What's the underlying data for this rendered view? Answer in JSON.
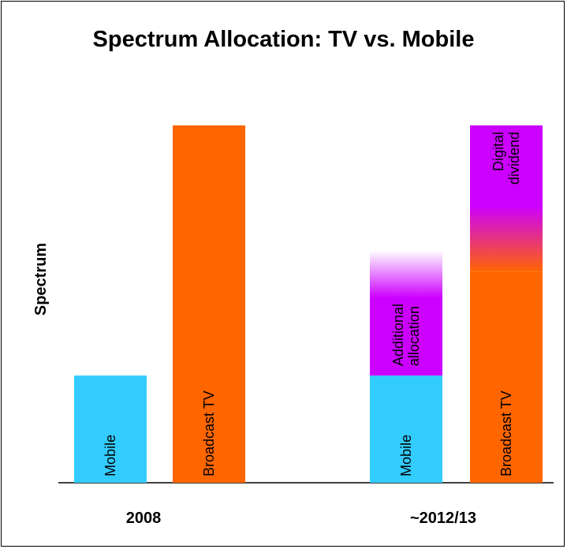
{
  "chart_data": {
    "type": "bar",
    "title": "Spectrum Allocation: TV vs. Mobile",
    "ylabel": "Spectrum",
    "xlabel": "",
    "ylim": [
      0,
      100
    ],
    "categories": [
      "2008",
      "~2012/13"
    ],
    "bars": [
      {
        "category": "2008",
        "label": "Mobile",
        "base": 0,
        "value": 30,
        "color": "#33ccff"
      },
      {
        "category": "2008",
        "label": "Broadcast TV",
        "base": 0,
        "value": 100,
        "color": "#ff6600"
      },
      {
        "category": "~2012/13",
        "label": "Mobile",
        "base": 0,
        "value": 30,
        "color": "#33ccff"
      },
      {
        "category": "~2012/13",
        "label": "Additional allocation",
        "base": 30,
        "value": 65,
        "color": "#cc00ff",
        "fade_top": true
      },
      {
        "category": "~2012/13",
        "label": "Broadcast TV",
        "base": 0,
        "value": 59,
        "color": "#ff6600"
      },
      {
        "category": "~2012/13",
        "label": "Digital dividend",
        "base": 59,
        "value": 100,
        "color": "#cc00ff",
        "blend_bottom": true
      }
    ],
    "colors": {
      "mobile": "#33ccff",
      "tv": "#ff6600",
      "extra": "#cc00ff"
    },
    "grid": false,
    "legend": "none"
  }
}
